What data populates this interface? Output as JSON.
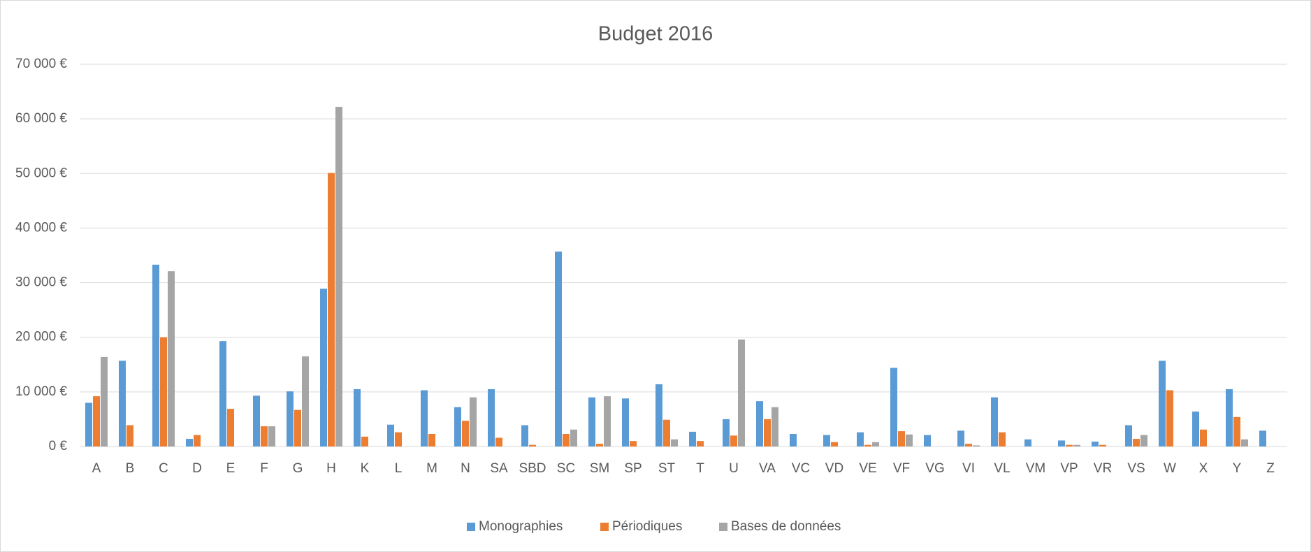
{
  "chart_data": {
    "type": "bar",
    "title": "Budget 2016",
    "categories": [
      "A",
      "B",
      "C",
      "D",
      "E",
      "F",
      "G",
      "H",
      "K",
      "L",
      "M",
      "N",
      "SA",
      "SBD",
      "SC",
      "SM",
      "SP",
      "ST",
      "T",
      "U",
      "VA",
      "VC",
      "VD",
      "VE",
      "VF",
      "VG",
      "VI",
      "VL",
      "VM",
      "VP",
      "VR",
      "VS",
      "W",
      "X",
      "Y",
      "Z"
    ],
    "series": [
      {
        "name": "Monographies",
        "color": "#5b9bd5",
        "values": [
          8000,
          15700,
          33300,
          1400,
          19300,
          9300,
          10100,
          28900,
          10500,
          4000,
          10300,
          7200,
          10500,
          3900,
          35700,
          9000,
          8800,
          11400,
          2700,
          5000,
          8300,
          2300,
          2100,
          2600,
          14400,
          2100,
          2900,
          9000,
          1300,
          1100,
          900,
          3900,
          15700,
          6400,
          10500,
          2900
        ]
      },
      {
        "name": "Périodiques",
        "color": "#ed7d31",
        "values": [
          9200,
          3900,
          20000,
          2100,
          6900,
          3700,
          6700,
          50100,
          1800,
          2600,
          2300,
          4700,
          1600,
          300,
          2300,
          500,
          1000,
          4900,
          1000,
          2000,
          5000,
          0,
          800,
          300,
          2800,
          0,
          500,
          2600,
          0,
          300,
          300,
          1400,
          10300,
          3100,
          5400,
          0
        ]
      },
      {
        "name": "Bases de données",
        "color": "#a5a5a5",
        "values": [
          16400,
          0,
          32100,
          0,
          0,
          3700,
          16500,
          62200,
          0,
          0,
          0,
          9000,
          0,
          0,
          3100,
          9200,
          0,
          1300,
          0,
          19600,
          7200,
          0,
          0,
          800,
          2200,
          0,
          200,
          0,
          0,
          300,
          0,
          2100,
          0,
          0,
          1300,
          0
        ]
      }
    ],
    "ylim": [
      0,
      70000
    ],
    "yticks": [
      {
        "value": 0,
        "label": "0 €"
      },
      {
        "value": 10000,
        "label": "10 000 €"
      },
      {
        "value": 20000,
        "label": "20 000 €"
      },
      {
        "value": 30000,
        "label": "30 000 €"
      },
      {
        "value": 40000,
        "label": "40 000 €"
      },
      {
        "value": 50000,
        "label": "50 000 €"
      },
      {
        "value": 60000,
        "label": "60 000 €"
      },
      {
        "value": 70000,
        "label": "70 000 €"
      }
    ],
    "grid": true,
    "legend": "bottom"
  }
}
